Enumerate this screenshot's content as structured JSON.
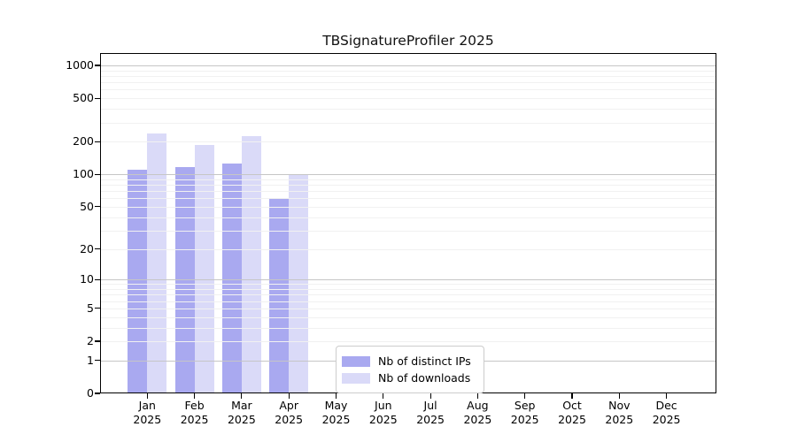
{
  "title": "TBSignatureProfiler 2025",
  "legend": {
    "items": [
      {
        "label": "Nb of distinct IPs",
        "color": "#a9a9f0"
      },
      {
        "label": "Nb of downloads",
        "color": "#dadaf8"
      }
    ]
  },
  "x_axis": {
    "months": [
      "Jan",
      "Feb",
      "Mar",
      "Apr",
      "May",
      "Jun",
      "Jul",
      "Aug",
      "Sep",
      "Oct",
      "Nov",
      "Dec"
    ],
    "year": "2025"
  },
  "chart_data": {
    "type": "bar",
    "title": "TBSignatureProfiler 2025",
    "categories": [
      "Jan 2025",
      "Feb 2025",
      "Mar 2025",
      "Apr 2025",
      "May 2025",
      "Jun 2025",
      "Jul 2025",
      "Aug 2025",
      "Sep 2025",
      "Oct 2025",
      "Nov 2025",
      "Dec 2025"
    ],
    "series": [
      {
        "name": "Nb of distinct IPs",
        "color": "#a9a9f0",
        "values": [
          111,
          117,
          125,
          59,
          0,
          0,
          0,
          0,
          0,
          0,
          0,
          0
        ]
      },
      {
        "name": "Nb of downloads",
        "color": "#dadaf8",
        "values": [
          239,
          187,
          223,
          100,
          0,
          0,
          0,
          0,
          0,
          0,
          0,
          0
        ]
      }
    ],
    "yscale": "log1p",
    "yticks": [
      0,
      1,
      2,
      5,
      10,
      20,
      50,
      100,
      200,
      500,
      1000
    ],
    "ylim": [
      0,
      1300
    ],
    "grid": "on",
    "grid_major_at": [
      1,
      10,
      100,
      1000
    ],
    "legend_position": "lower center",
    "colors": {
      "major_grid": "#c6c6c6",
      "minor_grid": "#f1f1f1",
      "spine": "#000000"
    }
  }
}
